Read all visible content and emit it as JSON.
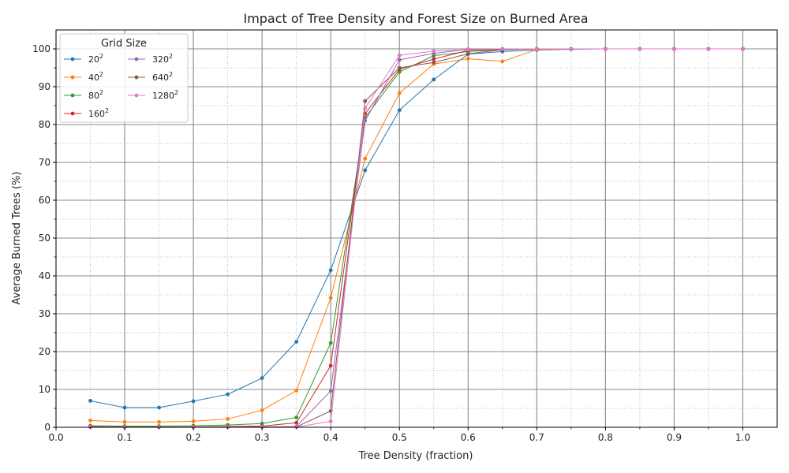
{
  "chart_data": {
    "type": "line",
    "title": "Impact of Tree Density and Forest Size on Burned Area",
    "xlabel": "Tree Density (fraction)",
    "ylabel": "Average Burned Trees (%)",
    "xlim": [
      0.0,
      1.05
    ],
    "ylim": [
      0,
      105
    ],
    "xticks": [
      "0.0",
      "0.1",
      "0.2",
      "0.3",
      "0.4",
      "0.5",
      "0.6",
      "0.7",
      "0.8",
      "0.9",
      "1.0"
    ],
    "yticks": [
      "0",
      "10",
      "20",
      "30",
      "40",
      "50",
      "60",
      "70",
      "80",
      "90",
      "100"
    ],
    "grid": "major solid + minor dotted",
    "legend": {
      "title": "Grid Size",
      "placement": "top-left",
      "columns": 2
    },
    "x": [
      0.05,
      0.1,
      0.15,
      0.2,
      0.25,
      0.3,
      0.35,
      0.4,
      0.45,
      0.5,
      0.55,
      0.6,
      0.65,
      0.7,
      0.75,
      0.8,
      0.85,
      0.9,
      0.95,
      1.0
    ],
    "series": [
      {
        "name": "20",
        "exp": "2",
        "color": "#1f77b4",
        "values": [
          7.0,
          5.2,
          5.2,
          6.9,
          8.7,
          13.0,
          22.6,
          41.5,
          67.9,
          83.8,
          91.9,
          98.6,
          99.3,
          99.7,
          99.9,
          100,
          100,
          100,
          100,
          100
        ]
      },
      {
        "name": "40",
        "exp": "2",
        "color": "#ff7f0e",
        "values": [
          1.8,
          1.4,
          1.4,
          1.6,
          2.2,
          4.5,
          9.7,
          34.2,
          71.0,
          88.3,
          96.0,
          97.4,
          96.7,
          99.8,
          100,
          100,
          100,
          100,
          100,
          100
        ]
      },
      {
        "name": "80",
        "exp": "2",
        "color": "#2ca02c",
        "values": [
          0.4,
          0.3,
          0.3,
          0.4,
          0.6,
          1.0,
          2.6,
          22.3,
          81.8,
          93.9,
          98.2,
          99.3,
          99.8,
          100,
          100,
          100,
          100,
          100,
          100,
          100
        ]
      },
      {
        "name": "160",
        "exp": "2",
        "color": "#d62728",
        "values": [
          0.2,
          0.1,
          0.1,
          0.1,
          0.2,
          0.3,
          1.2,
          16.3,
          82.9,
          94.6,
          97.3,
          99.6,
          99.9,
          100,
          100,
          100,
          100,
          100,
          100,
          100
        ]
      },
      {
        "name": "320",
        "exp": "2",
        "color": "#9467bd",
        "values": [
          0.1,
          0.05,
          0.05,
          0.05,
          0.05,
          0.1,
          0.2,
          9.6,
          81.0,
          97.1,
          98.8,
          99.9,
          100,
          100,
          100,
          100,
          100,
          100,
          100,
          100
        ]
      },
      {
        "name": "640",
        "exp": "2",
        "color": "#8c564b",
        "values": [
          0.05,
          0.05,
          0.05,
          0.05,
          0.05,
          0.05,
          0.1,
          4.3,
          86.2,
          95.0,
          96.4,
          98.7,
          99.8,
          100,
          100,
          100,
          100,
          100,
          100,
          100
        ]
      },
      {
        "name": "1280",
        "exp": "2",
        "color": "#e377c2",
        "values": [
          0.05,
          0.05,
          0.05,
          0.05,
          0.05,
          0.05,
          0.05,
          1.6,
          84.3,
          98.3,
          99.4,
          99.8,
          100,
          100,
          100,
          100,
          100,
          100,
          100,
          100
        ]
      }
    ]
  }
}
